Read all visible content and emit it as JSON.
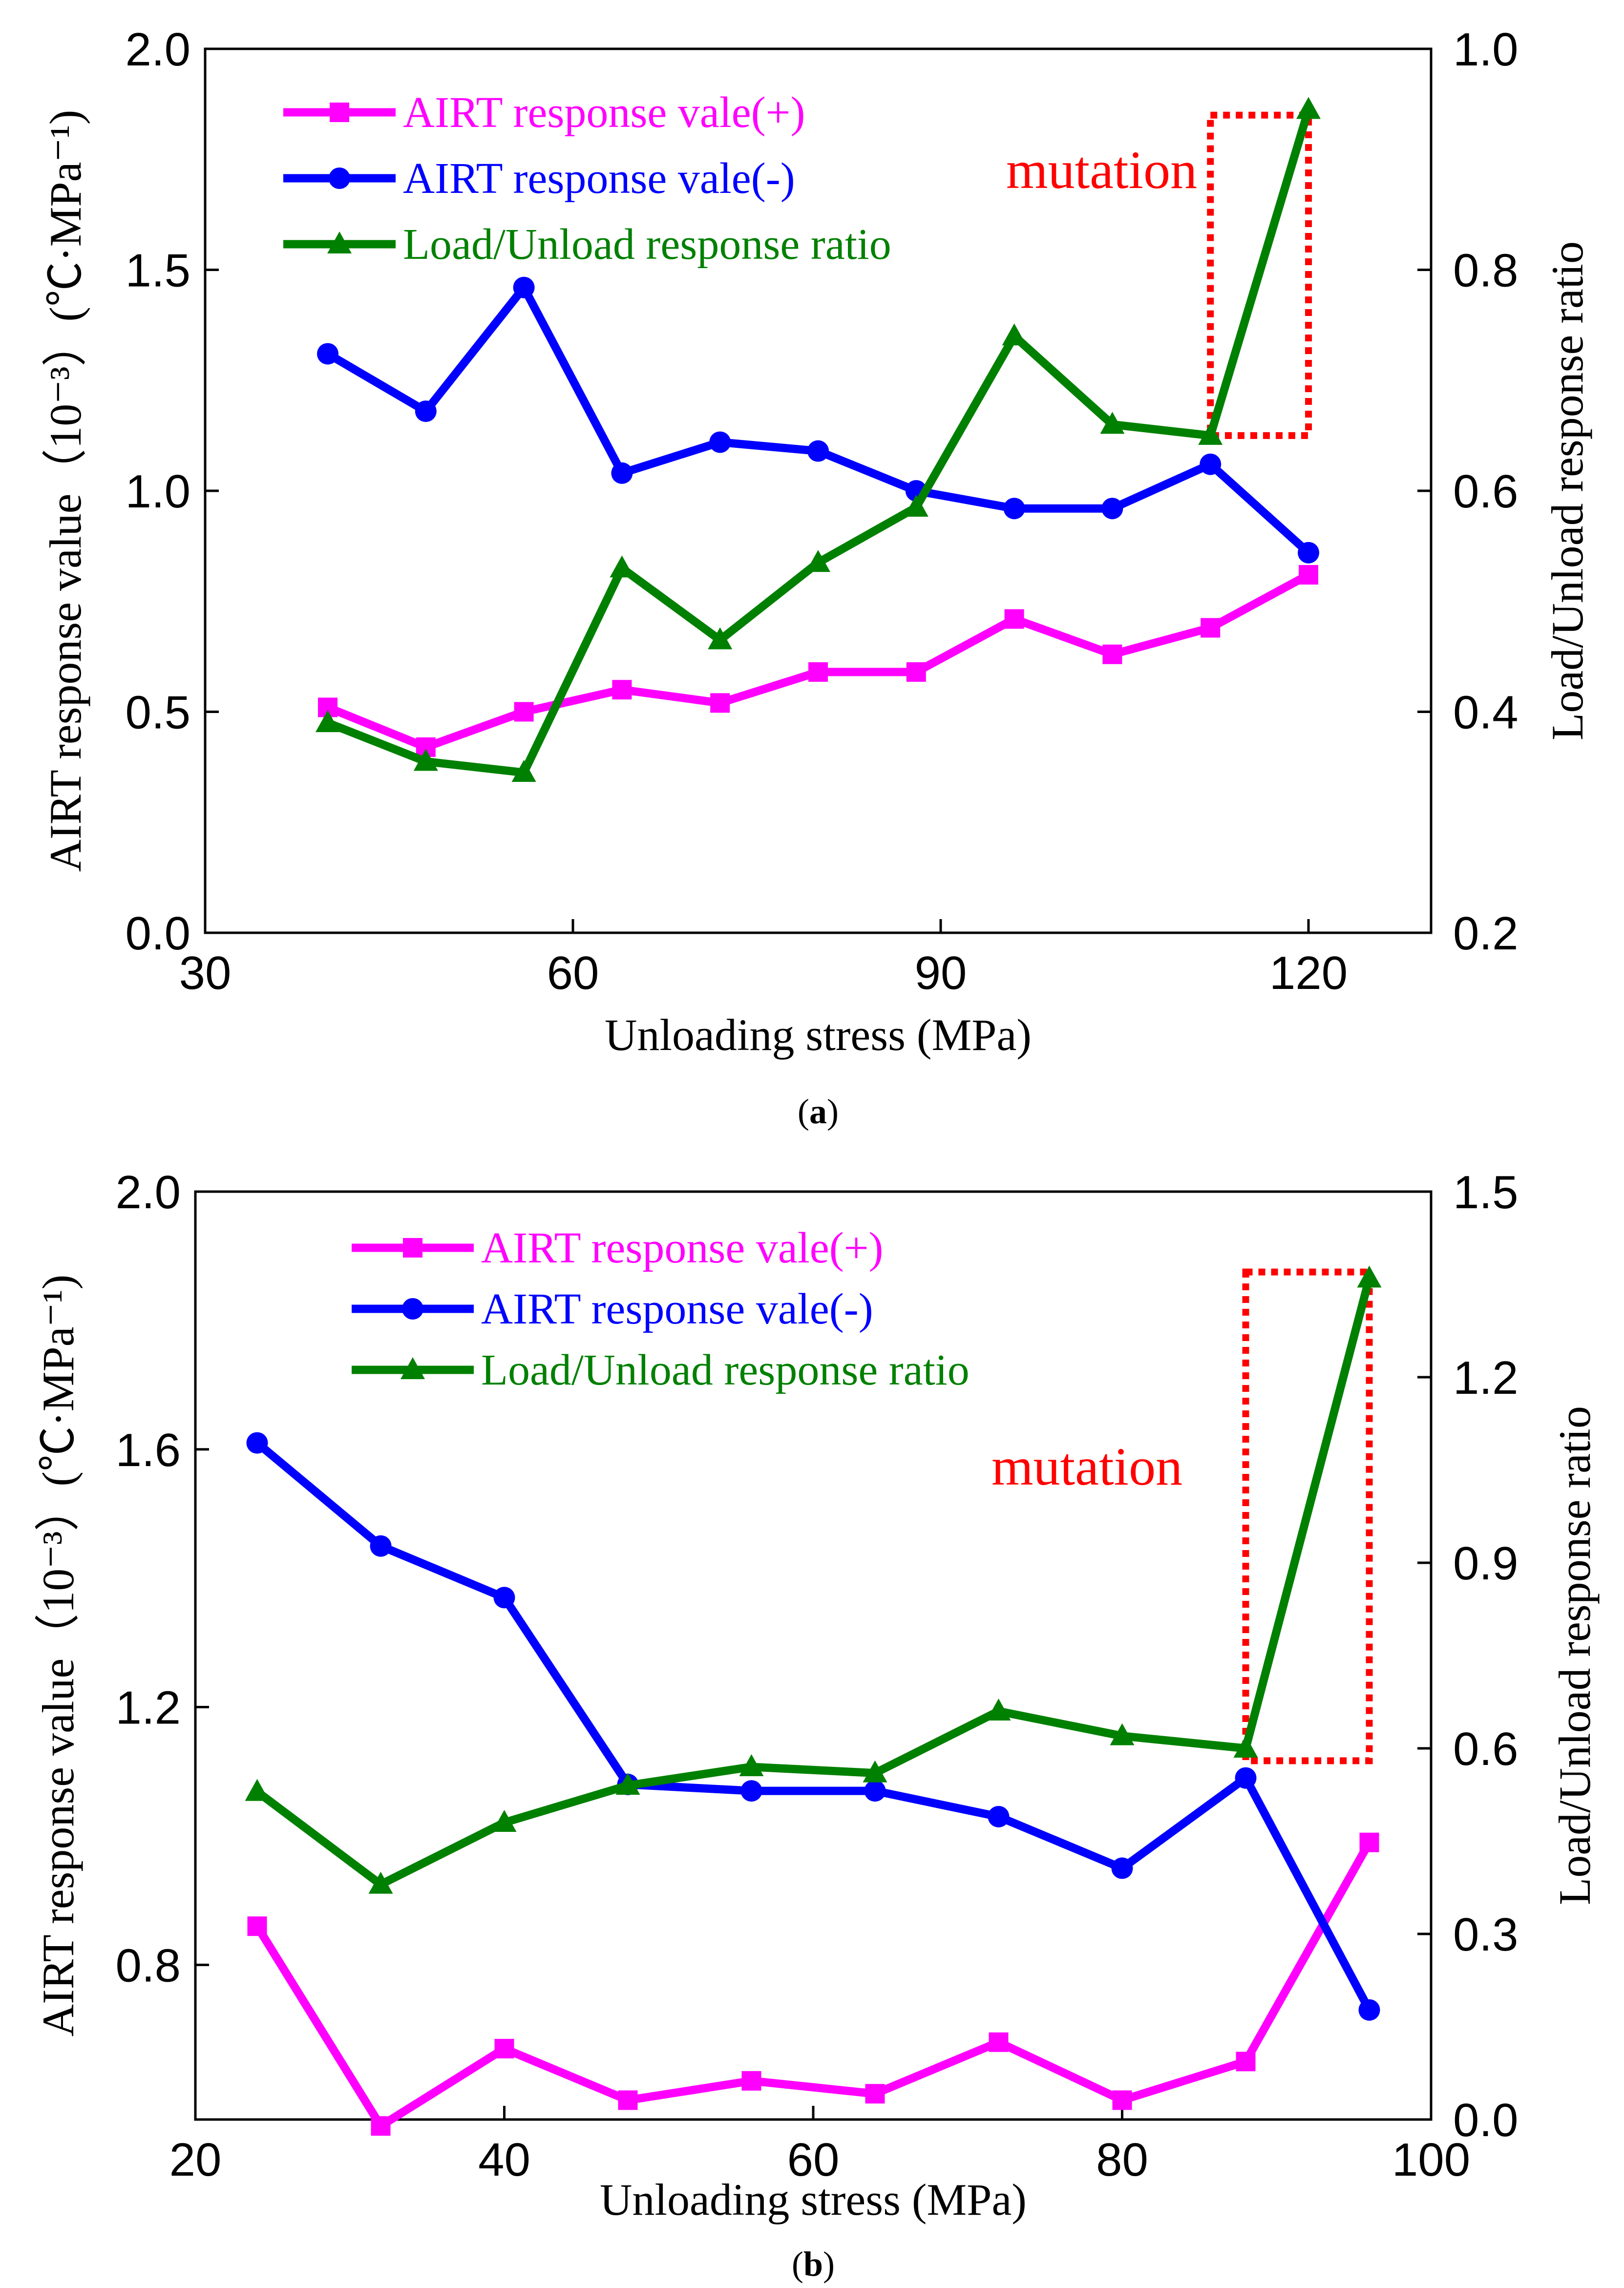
{
  "figure": {
    "panels": [
      {
        "id": "a",
        "label_prefix": "(",
        "label_letter": "a",
        "label_suffix": ")"
      },
      {
        "id": "b",
        "label_prefix": "(",
        "label_letter": "b",
        "label_suffix": ")"
      }
    ]
  },
  "chart_data": [
    {
      "type": "line",
      "panel": "a",
      "xlabel": "Unloading stress (MPa)",
      "ylabel_left": "AIRT response value（10⁻³）(℃·MPa⁻¹)",
      "ylabel_right": "Load/Unload response ratio",
      "xlim": [
        30,
        130
      ],
      "ylim_left": [
        0.0,
        2.0
      ],
      "ylim_right": [
        0.2,
        1.0
      ],
      "xticks": [
        "30",
        "60",
        "90",
        "120"
      ],
      "xtick_values": [
        30,
        60,
        90,
        120
      ],
      "yticks_left": [
        "0.0",
        "0.5",
        "1.0",
        "1.5",
        "2.0"
      ],
      "ytick_left_values": [
        0.0,
        0.5,
        1.0,
        1.5,
        2.0
      ],
      "yticks_right": [
        "0.2",
        "0.4",
        "0.6",
        "0.8",
        "1.0"
      ],
      "ytick_right_values": [
        0.2,
        0.4,
        0.6,
        0.8,
        1.0
      ],
      "legend_position": "top-left",
      "annotation": {
        "text": "mutation",
        "x_range": [
          112,
          120
        ],
        "y_right_range": [
          0.65,
          0.94
        ]
      },
      "series": [
        {
          "name": "AIRT response vale(+)",
          "axis": "left",
          "marker": "square",
          "color": "#ff00ff",
          "x": [
            40,
            48,
            56,
            64,
            72,
            80,
            88,
            96,
            104,
            112,
            120
          ],
          "y": [
            0.51,
            0.42,
            0.5,
            0.55,
            0.52,
            0.59,
            0.59,
            0.71,
            0.63,
            0.69,
            0.81
          ]
        },
        {
          "name": "AIRT response vale(-)",
          "axis": "left",
          "marker": "circle",
          "color": "#0000ff",
          "x": [
            40,
            48,
            56,
            64,
            72,
            80,
            88,
            96,
            104,
            112,
            120
          ],
          "y": [
            1.31,
            1.18,
            1.46,
            1.04,
            1.11,
            1.09,
            1.0,
            0.96,
            0.96,
            1.06,
            0.86
          ]
        },
        {
          "name": "Load/Unload response ratio",
          "axis": "right",
          "marker": "triangle",
          "color": "#008000",
          "x": [
            40,
            48,
            56,
            64,
            72,
            80,
            88,
            96,
            104,
            112,
            120
          ],
          "y": [
            0.39,
            0.355,
            0.345,
            0.53,
            0.465,
            0.535,
            0.585,
            0.74,
            0.66,
            0.65,
            0.945
          ]
        }
      ]
    },
    {
      "type": "line",
      "panel": "b",
      "xlabel": "Unloading stress (MPa)",
      "ylabel_left": "AIRT response value（10⁻³）(℃·MPa⁻¹)",
      "ylabel_right": "Load/Unload response ratio",
      "xlim": [
        20,
        100
      ],
      "ylim_left": [
        0.56,
        2.0
      ],
      "ylim_right": [
        0.0,
        1.5
      ],
      "xticks": [
        "20",
        "40",
        "60",
        "80",
        "100"
      ],
      "xtick_values": [
        20,
        40,
        60,
        80,
        100
      ],
      "yticks_left": [
        "0.8",
        "1.2",
        "1.6",
        "2.0"
      ],
      "ytick_left_values": [
        0.8,
        1.2,
        1.6,
        2.0
      ],
      "yticks_right": [
        "0.0",
        "0.3",
        "0.6",
        "0.9",
        "1.2",
        "1.5"
      ],
      "ytick_right_values": [
        0.0,
        0.3,
        0.6,
        0.9,
        1.2,
        1.5
      ],
      "legend_position": "top-center",
      "annotation": {
        "text": "mutation",
        "x_range": [
          88,
          96
        ],
        "y_right_range": [
          0.58,
          1.37
        ]
      },
      "series": [
        {
          "name": "AIRT response vale(+)",
          "axis": "left",
          "marker": "square",
          "color": "#ff00ff",
          "x": [
            24,
            32,
            40,
            48,
            56,
            64,
            72,
            80,
            88,
            96
          ],
          "y": [
            0.86,
            0.55,
            0.67,
            0.59,
            0.62,
            0.6,
            0.68,
            0.59,
            0.65,
            0.99
          ]
        },
        {
          "name": "AIRT response vale(-)",
          "axis": "left",
          "marker": "circle",
          "color": "#0000ff",
          "x": [
            24,
            32,
            40,
            48,
            56,
            64,
            72,
            80,
            88,
            96
          ],
          "y": [
            1.61,
            1.45,
            1.37,
            1.08,
            1.07,
            1.07,
            1.03,
            0.95,
            1.09,
            0.73
          ]
        },
        {
          "name": "Load/Unload response ratio",
          "axis": "right",
          "marker": "triangle",
          "color": "#008000",
          "x": [
            24,
            32,
            40,
            48,
            56,
            64,
            72,
            80,
            88,
            96
          ],
          "y": [
            0.53,
            0.38,
            0.48,
            0.54,
            0.57,
            0.56,
            0.66,
            0.62,
            0.6,
            1.36
          ]
        }
      ]
    }
  ]
}
